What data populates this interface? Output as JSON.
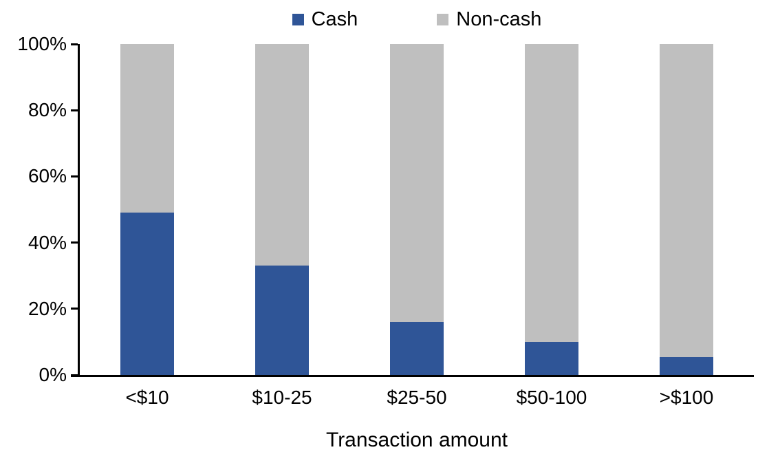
{
  "chart_data": {
    "type": "bar",
    "stacked": true,
    "orientation": "vertical",
    "title": "",
    "xlabel": "Transaction amount",
    "ylabel": "",
    "categories": [
      "<$10",
      "$10-25",
      "$25-50",
      "$50-100",
      ">$100"
    ],
    "series": [
      {
        "name": "Cash",
        "color": "#2F5597",
        "values": [
          49,
          33,
          16,
          10,
          5.5
        ]
      },
      {
        "name": "Non-cash",
        "color": "#BFBFBF",
        "values": [
          51,
          67,
          84,
          90,
          94.5
        ]
      }
    ],
    "ylim": [
      0,
      100
    ],
    "yticks": [
      "0%",
      "20%",
      "40%",
      "60%",
      "80%",
      "100%"
    ],
    "ytick_values": [
      0,
      20,
      40,
      60,
      80,
      100
    ],
    "legend_position": "top",
    "grid": false,
    "axis_color": "#000000",
    "text_color": "#000000"
  }
}
